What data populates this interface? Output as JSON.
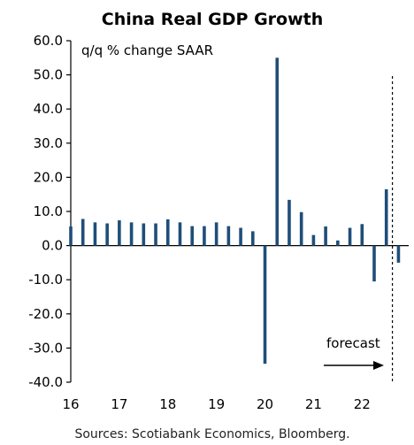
{
  "chart_data": {
    "type": "bar",
    "title": "China Real GDP Growth",
    "unit_label": "q/q % change SAAR",
    "ylim": [
      -40,
      60
    ],
    "y_ticks": [
      "60.0",
      "50.0",
      "40.0",
      "30.0",
      "20.0",
      "10.0",
      "0.0",
      "-10.0",
      "-20.0",
      "-30.0",
      "-40.0"
    ],
    "x_tick_labels": [
      "16",
      "17",
      "18",
      "19",
      "20",
      "21",
      "22"
    ],
    "forecast_label": "forecast",
    "source": "Sources: Scotiabank Economics, Bloomberg.",
    "bar_color": "#1f4e79",
    "series": [
      {
        "values": [
          5.6,
          7.8,
          6.8,
          6.5,
          7.4,
          6.8,
          6.5,
          6.5,
          7.7,
          6.8,
          5.7,
          5.7,
          6.8,
          5.7,
          5.2,
          4.2,
          -34.6,
          55.0,
          13.4,
          9.8,
          3.1,
          5.6,
          1.5,
          5.2,
          6.3,
          -10.5,
          16.5,
          -5.0
        ]
      }
    ]
  }
}
